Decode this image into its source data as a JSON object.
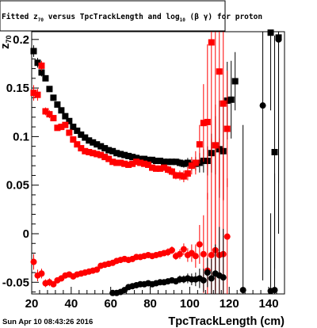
{
  "title_text": "Fitted  z",
  "title_sub": "70",
  "title_mid": " versus TpcTrackLength and log",
  "title_sub2": "10",
  "title_tail": " (β γ) for proton",
  "ylabel_main": "z",
  "ylabel_sub": "70",
  "xlabel": "TpcTrackLength (cm)",
  "timestamp": "Sun Apr 10 08:43:26 2016",
  "colors": {
    "black": "#000000",
    "red": "#ff0000"
  },
  "chart_data": {
    "type": "scatter",
    "title": "Fitted z70 versus TpcTrackLength and log10(β γ) for proton",
    "xlabel": "TpcTrackLength (cm)",
    "ylabel": "z70",
    "xlim": [
      20,
      148
    ],
    "ylim": [
      -0.062,
      0.208
    ],
    "x_ticks": [
      20,
      40,
      60,
      80,
      100,
      120,
      140
    ],
    "y_ticks": [
      -0.05,
      0,
      0.05,
      0.1,
      0.15,
      0.2
    ],
    "x_tick_labels": [
      "20",
      "40",
      "60",
      "80",
      "100",
      "120",
      "140"
    ],
    "y_tick_labels": [
      "-0.05",
      "0",
      "0.05",
      "0.1",
      "0.15",
      "0.2"
    ],
    "grid": false,
    "series": [
      {
        "marker": "square",
        "color": "#000000",
        "x": [
          21,
          23,
          25,
          27,
          29,
          31,
          33,
          35,
          37,
          39,
          41,
          43,
          45,
          47,
          49,
          51,
          53,
          55,
          57,
          59,
          61,
          63,
          65,
          67,
          69,
          71,
          73,
          75,
          77,
          79,
          81,
          83,
          85,
          87,
          89,
          91,
          93,
          95,
          97,
          99,
          101,
          103,
          105,
          107,
          109,
          111,
          113,
          115,
          117,
          119,
          121,
          123,
          141,
          143,
          145
        ],
        "y": [
          0.188,
          0.176,
          0.166,
          0.16,
          0.149,
          0.14,
          0.133,
          0.127,
          0.121,
          0.116,
          0.11,
          0.106,
          0.102,
          0.099,
          0.096,
          0.094,
          0.092,
          0.09,
          0.088,
          0.086,
          0.085,
          0.083,
          0.082,
          0.081,
          0.08,
          0.079,
          0.078,
          0.077,
          0.077,
          0.076,
          0.076,
          0.075,
          0.075,
          0.074,
          0.074,
          0.074,
          0.074,
          0.073,
          0.072,
          0.073,
          0.071,
          0.072,
          0.073,
          0.075,
          0.075,
          0.083,
          0.091,
          0.087,
          0.085,
          0.137,
          0.138,
          0.157,
          0.207,
          0.084,
          0.202
        ],
        "err": [
          0.006,
          0.005,
          0.004,
          0.003,
          0.003,
          0.003,
          0.002,
          0.002,
          0.002,
          0.002,
          0.002,
          0.002,
          0.002,
          0.002,
          0.002,
          0.002,
          0.002,
          0.002,
          0.002,
          0.002,
          0.002,
          0.002,
          0.002,
          0.002,
          0.002,
          0.002,
          0.002,
          0.002,
          0.002,
          0.002,
          0.002,
          0.002,
          0.002,
          0.002,
          0.003,
          0.003,
          0.003,
          0.004,
          0.004,
          0.005,
          0.006,
          0.007,
          0.01,
          0.012,
          0.015,
          0.02,
          0.03,
          0.05,
          0.05,
          0.04,
          0.04,
          0.03,
          0.08,
          0.12,
          0.15
        ]
      },
      {
        "marker": "square",
        "color": "#ff0000",
        "x": [
          21,
          23,
          25,
          27,
          29,
          31,
          33,
          35,
          37,
          39,
          41,
          43,
          45,
          47,
          49,
          51,
          53,
          55,
          57,
          59,
          61,
          63,
          65,
          67,
          69,
          71,
          73,
          75,
          77,
          79,
          81,
          83,
          85,
          87,
          89,
          91,
          93,
          95,
          97,
          99,
          101,
          103,
          105,
          107,
          109,
          111,
          113,
          115,
          117,
          119
        ],
        "y": [
          0.145,
          0.143,
          0.173,
          0.126,
          0.123,
          0.119,
          0.109,
          0.11,
          0.112,
          0.104,
          0.097,
          0.092,
          0.088,
          0.085,
          0.084,
          0.083,
          0.082,
          0.081,
          0.079,
          0.077,
          0.074,
          0.073,
          0.073,
          0.072,
          0.071,
          0.072,
          0.074,
          0.073,
          0.072,
          0.071,
          0.068,
          0.067,
          0.067,
          0.068,
          0.066,
          0.064,
          0.06,
          0.06,
          0.059,
          0.062,
          0.07,
          0.073,
          0.092,
          0.114,
          0.115,
          0.197,
          0.091,
          0.167,
          0.134,
          0.108
        ],
        "err": [
          0.008,
          0.006,
          0.005,
          0.004,
          0.004,
          0.003,
          0.003,
          0.003,
          0.003,
          0.003,
          0.003,
          0.003,
          0.003,
          0.003,
          0.003,
          0.003,
          0.003,
          0.003,
          0.003,
          0.003,
          0.003,
          0.003,
          0.003,
          0.003,
          0.003,
          0.003,
          0.003,
          0.003,
          0.003,
          0.003,
          0.003,
          0.003,
          0.003,
          0.003,
          0.004,
          0.004,
          0.004,
          0.005,
          0.006,
          0.007,
          0.009,
          0.012,
          0.02,
          0.04,
          0.08,
          0.12,
          0.15,
          0.12,
          0.1,
          0.06
        ]
      },
      {
        "marker": "circle",
        "color": "#ff0000",
        "x": [
          21,
          23,
          25,
          27,
          29,
          31,
          33,
          35,
          37,
          39,
          41,
          43,
          45,
          47,
          49,
          51,
          53,
          55,
          57,
          59,
          61,
          63,
          65,
          67,
          69,
          71,
          73,
          75,
          77,
          79,
          81,
          83,
          85,
          87,
          89,
          91,
          93,
          95,
          97,
          99,
          101,
          103,
          105,
          107,
          109,
          111,
          113,
          115,
          117,
          119
        ],
        "y": [
          -0.029,
          -0.043,
          -0.041,
          -0.051,
          -0.05,
          -0.052,
          -0.048,
          -0.046,
          -0.043,
          -0.042,
          -0.044,
          -0.042,
          -0.041,
          -0.04,
          -0.039,
          -0.038,
          -0.037,
          -0.033,
          -0.032,
          -0.031,
          -0.03,
          -0.028,
          -0.027,
          -0.026,
          -0.027,
          -0.026,
          -0.024,
          -0.024,
          -0.023,
          -0.022,
          -0.023,
          -0.022,
          -0.021,
          -0.02,
          -0.019,
          -0.017,
          -0.023,
          -0.021,
          -0.016,
          -0.022,
          -0.02,
          -0.023,
          -0.011,
          -0.021,
          -0.038,
          -0.022,
          -0.017,
          -0.022,
          -0.021,
          -0.003
        ],
        "err": [
          0.008,
          0.006,
          0.005,
          0.004,
          0.004,
          0.003,
          0.003,
          0.003,
          0.003,
          0.003,
          0.003,
          0.003,
          0.003,
          0.003,
          0.003,
          0.003,
          0.003,
          0.003,
          0.003,
          0.003,
          0.003,
          0.003,
          0.003,
          0.003,
          0.003,
          0.003,
          0.003,
          0.003,
          0.003,
          0.003,
          0.003,
          0.003,
          0.003,
          0.003,
          0.004,
          0.004,
          0.004,
          0.005,
          0.006,
          0.007,
          0.009,
          0.012,
          0.02,
          0.04,
          0.08,
          0.12,
          0.15,
          0.12,
          0.1,
          0.06
        ]
      },
      {
        "marker": "circle",
        "color": "#000000",
        "x": [
          61,
          63,
          65,
          67,
          69,
          71,
          73,
          75,
          77,
          79,
          81,
          83,
          85,
          87,
          89,
          91,
          93,
          95,
          97,
          99,
          101,
          103,
          105,
          107,
          109,
          111,
          113,
          115,
          117,
          127,
          137,
          141,
          143,
          145
        ],
        "y": [
          -0.061,
          -0.061,
          -0.06,
          -0.058,
          -0.055,
          -0.054,
          -0.053,
          -0.052,
          -0.052,
          -0.051,
          -0.052,
          -0.051,
          -0.05,
          -0.05,
          -0.049,
          -0.048,
          -0.049,
          -0.047,
          -0.047,
          -0.046,
          -0.047,
          -0.047,
          -0.046,
          -0.048,
          -0.04,
          -0.046,
          -0.041,
          -0.043,
          -0.045,
          -0.058,
          0.132,
          -0.059,
          -0.058,
          0.2
        ],
        "err": [
          0.002,
          0.002,
          0.002,
          0.002,
          0.002,
          0.002,
          0.002,
          0.002,
          0.002,
          0.002,
          0.002,
          0.002,
          0.002,
          0.002,
          0.003,
          0.003,
          0.003,
          0.004,
          0.004,
          0.005,
          0.006,
          0.007,
          0.01,
          0.012,
          0.015,
          0.02,
          0.03,
          0.05,
          0.05,
          0.17,
          0.18,
          0.08,
          0.12,
          0.2
        ]
      }
    ]
  }
}
